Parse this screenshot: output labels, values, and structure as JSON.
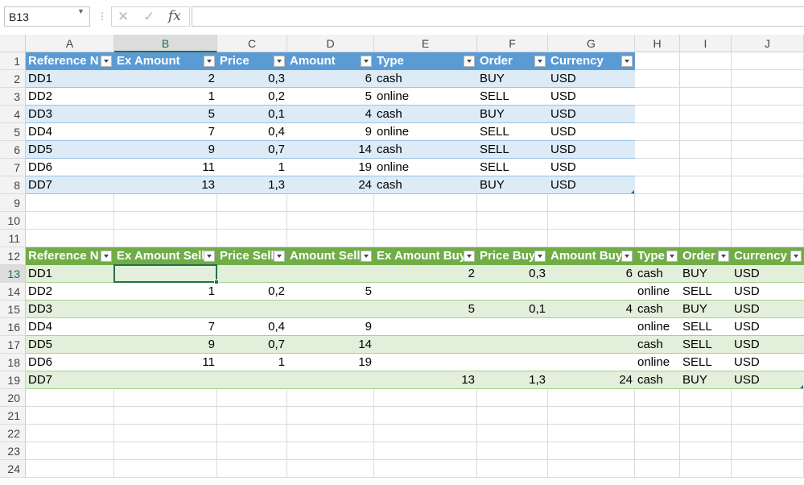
{
  "name_box": "B13",
  "formula_text": "",
  "columns": [
    "A",
    "B",
    "C",
    "D",
    "E",
    "F",
    "G",
    "H",
    "I",
    "J"
  ],
  "selected_column": "B",
  "selected_row": 13,
  "rows": [
    1,
    2,
    3,
    4,
    5,
    6,
    7,
    8,
    9,
    10,
    11,
    12,
    13,
    14,
    15,
    16,
    17,
    18,
    19,
    20,
    21,
    22,
    23,
    24
  ],
  "table1": {
    "header_row": 1,
    "headers": [
      "Reference N",
      "Ex Amount",
      "Price",
      "Amount",
      "Type",
      "Order",
      "Currency"
    ],
    "rows": [
      [
        "DD1",
        "2",
        "0,3",
        "6",
        "cash",
        "BUY",
        "USD"
      ],
      [
        "DD2",
        "1",
        "0,2",
        "5",
        "online",
        "SELL",
        "USD"
      ],
      [
        "DD3",
        "5",
        "0,1",
        "4",
        "cash",
        "BUY",
        "USD"
      ],
      [
        "DD4",
        "7",
        "0,4",
        "9",
        "online",
        "SELL",
        "USD"
      ],
      [
        "DD5",
        "9",
        "0,7",
        "14",
        "cash",
        "SELL",
        "USD"
      ],
      [
        "DD6",
        "11",
        "1",
        "19",
        "online",
        "SELL",
        "USD"
      ],
      [
        "DD7",
        "13",
        "1,3",
        "24",
        "cash",
        "BUY",
        "USD"
      ]
    ],
    "header_color": "#5b9bd5",
    "band_color": "#ddebf7"
  },
  "table2": {
    "header_row": 12,
    "headers": [
      "Reference N",
      "Ex Amount Sell",
      "Price Sell",
      "Amount Sell",
      "Ex Amount Buy",
      "Price Buy",
      "Amount Buy",
      "Type",
      "Order",
      "Currency"
    ],
    "rows": [
      [
        "DD1",
        "",
        "",
        "",
        "2",
        "0,3",
        "6",
        "cash",
        "BUY",
        "USD"
      ],
      [
        "DD2",
        "1",
        "0,2",
        "5",
        "",
        "",
        "",
        "online",
        "SELL",
        "USD"
      ],
      [
        "DD3",
        "",
        "",
        "",
        "5",
        "0,1",
        "4",
        "cash",
        "BUY",
        "USD"
      ],
      [
        "DD4",
        "7",
        "0,4",
        "9",
        "",
        "",
        "",
        "online",
        "SELL",
        "USD"
      ],
      [
        "DD5",
        "9",
        "0,7",
        "14",
        "",
        "",
        "",
        "cash",
        "SELL",
        "USD"
      ],
      [
        "DD6",
        "11",
        "1",
        "19",
        "",
        "",
        "",
        "online",
        "SELL",
        "USD"
      ],
      [
        "DD7",
        "",
        "",
        "",
        "13",
        "1,3",
        "24",
        "cash",
        "BUY",
        "USD"
      ]
    ],
    "header_color": "#70ad47",
    "band_color": "#e2efda"
  }
}
